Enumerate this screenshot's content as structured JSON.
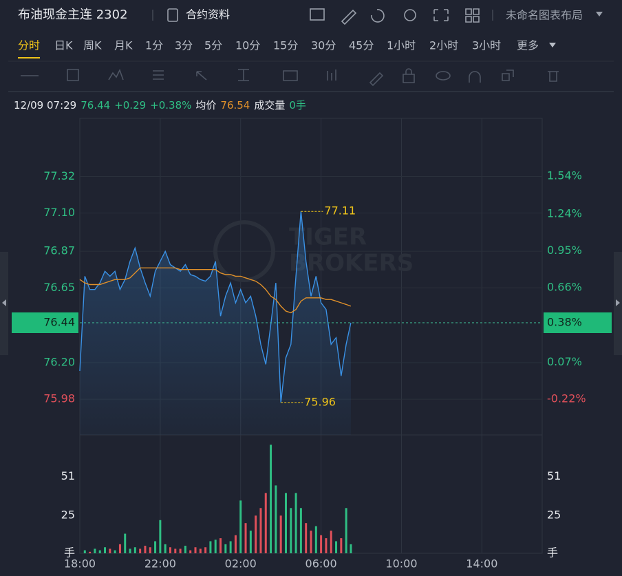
{
  "header": {
    "title": "布油现金主连 2302",
    "contract_info": "合约资料",
    "layout_name": "未命名图表布局"
  },
  "tabs": [
    "分时",
    "日K",
    "周K",
    "月K",
    "1分",
    "3分",
    "5分",
    "10分",
    "15分",
    "30分",
    "45分",
    "1小时",
    "2小时",
    "3小时",
    "更多"
  ],
  "active_tab": 0,
  "quote": {
    "time": "12/09 07:29",
    "price": 76.44,
    "change": "+0.29",
    "change_pct": "+0.38%",
    "avg_label": "均价",
    "avg": 76.54,
    "volume_label": "成交量",
    "volume": "0手"
  },
  "chart_data": {
    "type": "line",
    "x": [
      "18:00",
      "18:15",
      "18:30",
      "18:45",
      "19:00",
      "19:15",
      "19:30",
      "19:45",
      "20:00",
      "20:15",
      "20:30",
      "20:45",
      "21:00",
      "21:15",
      "21:30",
      "21:45",
      "22:00",
      "22:15",
      "22:30",
      "22:45",
      "23:00",
      "23:15",
      "23:30",
      "23:45",
      "00:00",
      "00:15",
      "00:30",
      "00:45",
      "01:00",
      "01:15",
      "01:30",
      "01:45",
      "02:00",
      "02:15",
      "02:30",
      "02:45",
      "03:00",
      "03:15",
      "03:30",
      "03:45",
      "04:00",
      "04:15",
      "04:30",
      "04:45",
      "05:00",
      "05:15",
      "05:30",
      "05:45",
      "06:00",
      "06:15",
      "06:30",
      "06:45",
      "07:00",
      "07:15",
      "07:29"
    ],
    "series": [
      {
        "color": "#3a92e6",
        "values": [
          76.15,
          76.72,
          76.64,
          76.64,
          76.68,
          76.75,
          76.72,
          76.75,
          76.64,
          76.7,
          76.81,
          76.89,
          76.77,
          76.68,
          76.6,
          76.75,
          76.81,
          76.87,
          76.79,
          76.77,
          76.75,
          76.79,
          76.73,
          76.72,
          76.7,
          76.69,
          76.72,
          76.81,
          76.48,
          76.6,
          76.68,
          76.56,
          76.64,
          76.56,
          76.6,
          76.48,
          76.31,
          76.19,
          76.43,
          76.68,
          75.96,
          76.23,
          76.31,
          76.72,
          77.11,
          76.81,
          76.6,
          76.72,
          76.56,
          76.52,
          76.31,
          76.35,
          76.12,
          76.31,
          76.44
        ]
      },
      {
        "color": "#e0902a",
        "values": [
          76.7,
          76.68,
          76.67,
          76.67,
          76.67,
          76.68,
          76.69,
          76.7,
          76.7,
          76.7,
          76.71,
          76.74,
          76.77,
          76.77,
          76.77,
          76.77,
          76.77,
          76.77,
          76.77,
          76.77,
          76.76,
          76.76,
          76.76,
          76.76,
          76.76,
          76.76,
          76.76,
          76.76,
          76.74,
          76.73,
          76.73,
          76.72,
          76.72,
          76.71,
          76.7,
          76.69,
          76.67,
          76.64,
          76.6,
          76.58,
          76.54,
          76.51,
          76.5,
          76.52,
          76.57,
          76.59,
          76.59,
          76.59,
          76.59,
          76.58,
          76.58,
          76.57,
          76.56,
          76.55,
          76.54
        ]
      }
    ],
    "volume": {
      "values": [
        0,
        2,
        1,
        3,
        2,
        4,
        3,
        2,
        6,
        13,
        3,
        4,
        3,
        5,
        4,
        8,
        22,
        6,
        4,
        3,
        3,
        5,
        2,
        4,
        3,
        4,
        8,
        9,
        10,
        6,
        8,
        12,
        35,
        20,
        15,
        25,
        30,
        40,
        72,
        45,
        25,
        40,
        30,
        40,
        30,
        20,
        15,
        18,
        12,
        10,
        15,
        8,
        10,
        30,
        6
      ],
      "ylim": [
        0,
        78.5
      ],
      "yticks": [
        {
          "value": 0,
          "label": "手"
        },
        25,
        51
      ],
      "up_color": "#2fbf84",
      "down_color": "#e0505a"
    },
    "xlim": [
      "18:00",
      "17:00"
    ],
    "xticks": [
      "18:00",
      "22:00",
      "02:00",
      "06:00",
      "10:00",
      "14:00"
    ],
    "ylim": [
      75.765,
      77.67
    ],
    "yticks": [
      {
        "value": 75.98,
        "label": "75.98"
      },
      {
        "value": 76.2,
        "label": "76.20"
      },
      76.65,
      76.87,
      {
        "value": 77.1,
        "label": "77.10"
      },
      77.32
    ],
    "y2lim": [
      -0.502,
      1.996
    ],
    "y2ticks": [
      {
        "value": -0.22,
        "label": "-0.22%"
      },
      {
        "value": 0.07,
        "label": "0.07%"
      },
      {
        "value": 0.66,
        "label": "0.66%"
      },
      {
        "value": 0.95,
        "label": "0.95%"
      },
      {
        "value": 1.24,
        "label": "1.24%"
      },
      {
        "value": 1.54,
        "label": "1.54%"
      }
    ],
    "last": {
      "value": 76.44,
      "pct": {
        "value": 0.38,
        "label": "0.38%"
      },
      "color": "#1fb978"
    },
    "annotations": [
      {
        "x": "05:00",
        "value": 77.11
      },
      {
        "x": "04:00",
        "value": 75.96
      }
    ],
    "watermark": [
      "TIGER",
      "BROKERS"
    ],
    "grid": true,
    "up_color": "#2fbf84",
    "down_color": "#e0505a"
  }
}
